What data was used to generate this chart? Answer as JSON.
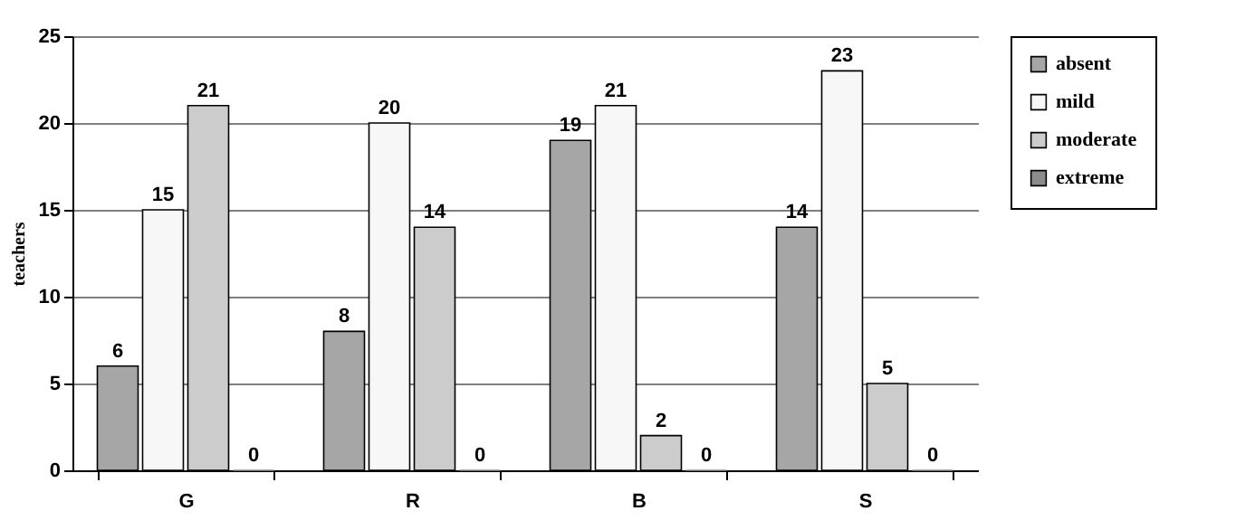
{
  "chart_data": {
    "type": "bar",
    "ylabel": "teachers",
    "categories": [
      "G",
      "R",
      "B",
      "S"
    ],
    "series": [
      {
        "name": "absent",
        "color": "#a6a6a6",
        "values": [
          6,
          8,
          19,
          14
        ]
      },
      {
        "name": "mild",
        "color": "#f7f7f7",
        "values": [
          15,
          20,
          21,
          23
        ]
      },
      {
        "name": "moderate",
        "color": "#cccccc",
        "values": [
          21,
          14,
          2,
          5
        ]
      },
      {
        "name": "extreme",
        "color": "#8c8c8c",
        "values": [
          0,
          0,
          0,
          0
        ]
      }
    ],
    "ylim": [
      0,
      25
    ],
    "yticks": [
      0,
      5,
      10,
      15,
      20,
      25
    ],
    "grid": "y",
    "legend": "right",
    "data_labels": true
  }
}
